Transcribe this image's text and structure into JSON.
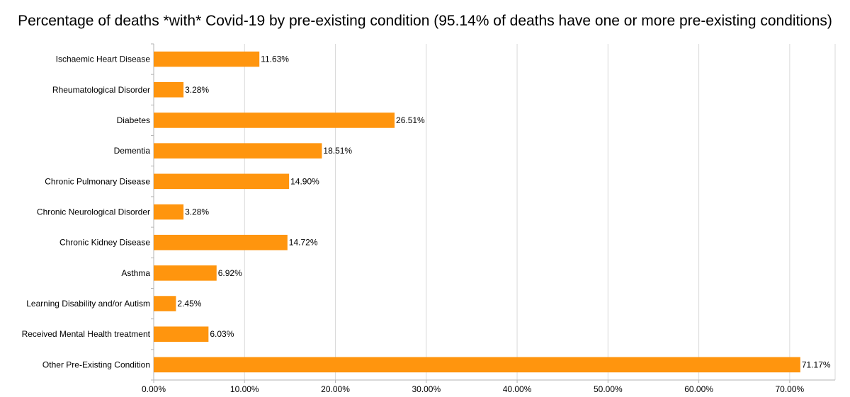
{
  "chart_data": {
    "type": "bar",
    "orientation": "horizontal",
    "title": "Percentage of deaths *with* Covid-19 by pre-existing condition (95.14% of deaths have one or more pre-existing conditions)",
    "categories": [
      "Ischaemic Heart Disease",
      "Rheumatological Disorder",
      "Diabetes",
      "Dementia",
      "Chronic Pulmonary Disease",
      "Chronic Neurological Disorder",
      "Chronic Kidney Disease",
      "Asthma",
      "Learning Disability and/or Autism",
      "Received Mental Health treatment",
      "Other Pre-Existing Condition"
    ],
    "values": [
      11.63,
      3.28,
      26.51,
      18.51,
      14.9,
      3.28,
      14.72,
      6.92,
      2.45,
      6.03,
      71.17
    ],
    "data_labels": [
      "11.63%",
      "3.28%",
      "26.51%",
      "18.51%",
      "14.90%",
      "3.28%",
      "14.72%",
      "6.92%",
      "2.45%",
      "6.03%",
      "71.17%"
    ],
    "xlim": [
      0,
      75
    ],
    "x_ticks": [
      0,
      10,
      20,
      30,
      40,
      50,
      60,
      70
    ],
    "x_tick_labels": [
      "0.00%",
      "10.00%",
      "20.00%",
      "30.00%",
      "40.00%",
      "50.00%",
      "60.00%",
      "70.00%"
    ],
    "xlabel": "",
    "ylabel": "",
    "grid": "vertical",
    "legend": "none",
    "bar_color": "#ff950e",
    "grid_color": "#d9d9d9",
    "axis_color": "#b3b3b3"
  }
}
